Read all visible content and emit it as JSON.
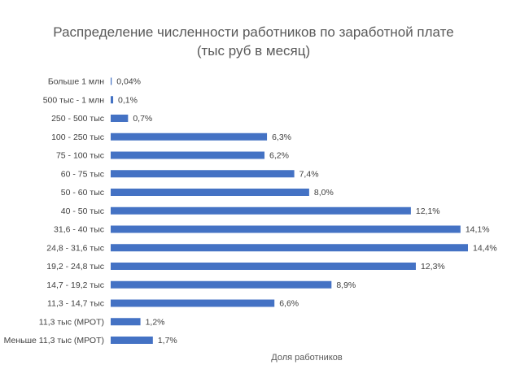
{
  "chart_data": {
    "type": "bar",
    "orientation": "horizontal",
    "title_lines": [
      "Распределение численности работников по заработной плате",
      "(тыс руб в месяц)"
    ],
    "xlabel": "Доля работников",
    "ylabel": "",
    "categories": [
      "Больше 1 млн",
      "500 тыс - 1 млн",
      "250 - 500 тыс",
      "100 - 250 тыс",
      "75 - 100 тыс",
      "60 - 75 тыс",
      "50 - 60 тыс",
      "40 - 50 тыс",
      "31,6 - 40 тыс",
      "24,8 - 31,6 тыс",
      "19,2 - 24,8 тыс",
      "14,7 - 19,2 тыс",
      "11,3 - 14,7 тыс",
      "11,3 тыс (МРОТ)",
      "Меньше 11,3 тыс (МРОТ)"
    ],
    "values": [
      0.04,
      0.1,
      0.7,
      6.3,
      6.2,
      7.4,
      8.0,
      12.1,
      14.1,
      14.4,
      12.3,
      8.9,
      6.6,
      1.2,
      1.7
    ],
    "value_labels": [
      "0,04%",
      "0,1%",
      "0,7%",
      "6,3%",
      "6,2%",
      "7,4%",
      "8,0%",
      "12,1%",
      "14,1%",
      "14,4%",
      "12,3%",
      "8,9%",
      "6,6%",
      "1,2%",
      "1,7%"
    ],
    "xlim": [
      0,
      14.4
    ],
    "grid": false,
    "legend": "none",
    "bar_color": "#4472C4",
    "text_color": "#404040"
  }
}
